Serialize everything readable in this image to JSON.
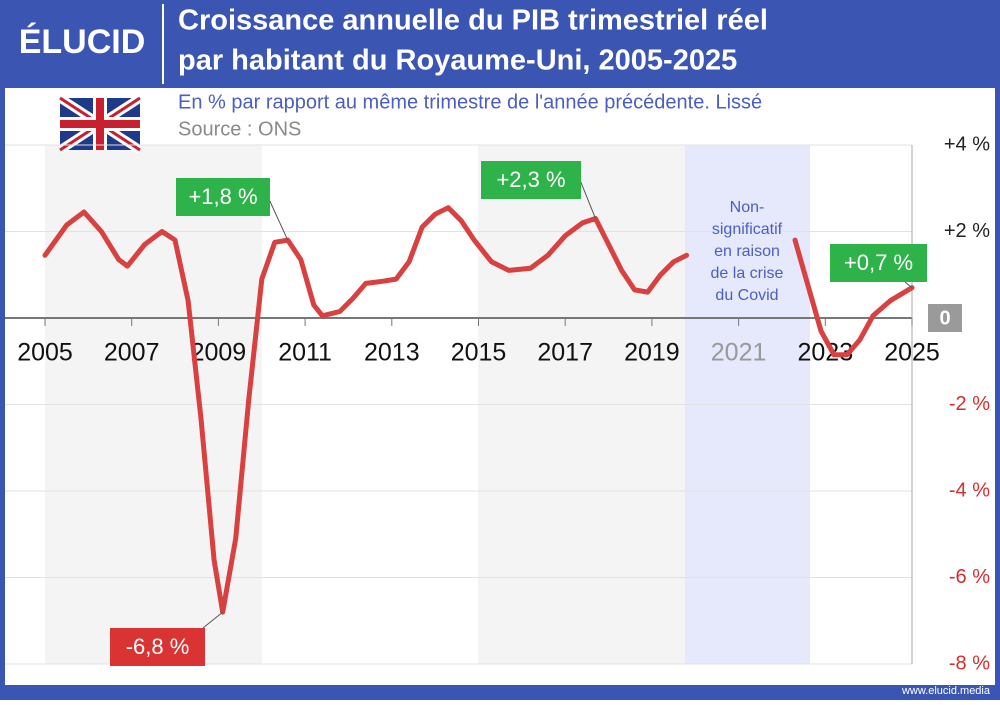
{
  "header": {
    "logo": "ÉLUCID",
    "footer": "www.elucid.media"
  },
  "chart_data": {
    "type": "line",
    "title": [
      "Croissance annuelle du PIB trimestriel réel",
      "par habitant du Royaume-Uni, 2005-2025"
    ],
    "subtitle": "En % par rapport au même trimestre de l'année précédente. Lissé",
    "source": "Source : ONS",
    "x": [
      2005.0,
      2005.5,
      2005.9,
      2006.3,
      2006.7,
      2006.9,
      2007.3,
      2007.7,
      2008.0,
      2008.3,
      2008.6,
      2008.9,
      2009.1,
      2009.4,
      2009.7,
      2010.0,
      2010.3,
      2010.6,
      2010.9,
      2011.2,
      2011.4,
      2011.8,
      2012.1,
      2012.4,
      2012.8,
      2013.1,
      2013.4,
      2013.7,
      2014.0,
      2014.3,
      2014.6,
      2014.9,
      2015.3,
      2015.7,
      2016.2,
      2016.6,
      2017.0,
      2017.4,
      2017.7,
      2018.0,
      2018.3,
      2018.6,
      2018.9,
      2019.2,
      2019.5,
      2019.8,
      2021.0,
      2022.3,
      2022.6,
      2022.9,
      2023.2,
      2023.5,
      2023.8,
      2024.1,
      2024.5,
      2025.0
    ],
    "series": [
      {
        "name": "PIB",
        "color": "#d94040",
        "values": [
          1.45,
          2.15,
          2.45,
          2.0,
          1.35,
          1.2,
          1.7,
          2.0,
          1.8,
          0.4,
          -2.35,
          -5.6,
          -6.8,
          -5.1,
          -1.9,
          0.9,
          1.75,
          1.8,
          1.35,
          0.3,
          0.05,
          0.15,
          0.45,
          0.8,
          0.85,
          0.9,
          1.3,
          2.1,
          2.4,
          2.55,
          2.25,
          1.8,
          1.3,
          1.1,
          1.15,
          1.45,
          1.9,
          2.2,
          2.3,
          1.7,
          1.1,
          0.65,
          0.6,
          1.0,
          1.3,
          1.45,
          null,
          1.8,
          0.75,
          -0.3,
          -0.85,
          -0.85,
          -0.5,
          0.05,
          0.4,
          0.7
        ]
      }
    ],
    "xlim": [
      2005,
      2025
    ],
    "ylim": [
      -8,
      4
    ],
    "xticks": [
      2005,
      2007,
      2009,
      2011,
      2013,
      2015,
      2017,
      2019,
      2021,
      2023,
      2025
    ],
    "yticks": [
      {
        "value": -8,
        "label": "-8 %"
      },
      {
        "value": -6,
        "label": "-6 %"
      },
      {
        "value": -4,
        "label": "-4 %"
      },
      {
        "value": -2,
        "label": "-2 %"
      },
      0,
      {
        "value": 2,
        "label": "+2 %"
      },
      {
        "value": 4,
        "label": "+4 %"
      }
    ],
    "grid": true,
    "annotations": [
      {
        "text": "+1,8 %",
        "x": 2010.6,
        "value": 1.8
      },
      {
        "text": "-6,8 %",
        "x": 2009.1,
        "value": -6.8
      },
      {
        "text": "+2,3 %",
        "x": 2017.7,
        "value": 2.3
      },
      {
        "text": "+0,7 %",
        "x": 2025.0,
        "value": 0.7
      }
    ],
    "note": [
      "Non-",
      "significatif",
      "en raison",
      "de la crise",
      "du Covid"
    ]
  }
}
